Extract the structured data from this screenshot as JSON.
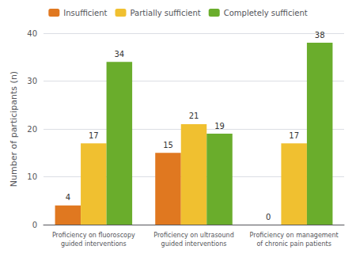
{
  "chart_data": {
    "type": "bar",
    "categories": [
      "Proficiency on fluoroscopy\nguided interventions",
      "Proficiency on ultrasound\nguided interventions",
      "Proficiency on management\nof chronic pain patients"
    ],
    "series": [
      {
        "name": "Insufficient",
        "color": "#E07820",
        "values": [
          4,
          15,
          0
        ]
      },
      {
        "name": "Partially sufficient",
        "color": "#F0C030",
        "values": [
          17,
          21,
          17
        ]
      },
      {
        "name": "Completely sufficient",
        "color": "#6AAD2C",
        "values": [
          34,
          19,
          38
        ]
      }
    ],
    "ylabel": "Number of participants (n)",
    "ylim": [
      0,
      40
    ],
    "yticks": [
      0,
      10,
      20,
      30,
      40
    ],
    "grid": true,
    "legend": "top",
    "data_labels": true
  }
}
